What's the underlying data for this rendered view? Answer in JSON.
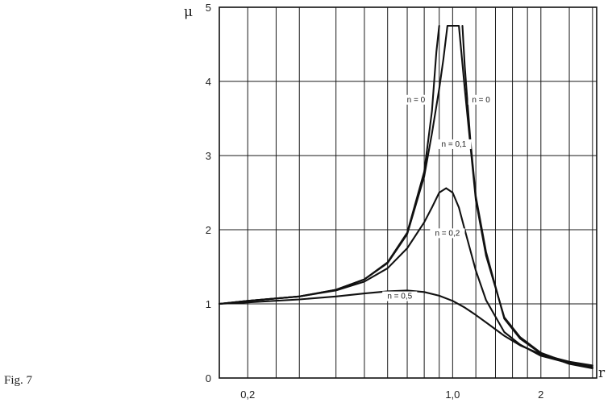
{
  "figure": {
    "caption": "Fig. 7"
  },
  "chart_data": {
    "type": "line",
    "title": "",
    "xlabel": "r",
    "ylabel": "μ",
    "xlim": [
      0.16,
      3.1
    ],
    "ylim": [
      0,
      5
    ],
    "x_scale": "log",
    "grid": true,
    "x_ticks": [
      {
        "value": 0.2,
        "label": "0,2"
      },
      {
        "value": 1.0,
        "label": "1,0"
      },
      {
        "value": 2.0,
        "label": "2"
      }
    ],
    "y_ticks": [
      {
        "value": 0,
        "label": "0"
      },
      {
        "value": 1,
        "label": "1"
      },
      {
        "value": 2,
        "label": "2"
      },
      {
        "value": 3,
        "label": "3"
      },
      {
        "value": 4,
        "label": "4"
      },
      {
        "value": 5,
        "label": "5"
      }
    ],
    "x_gridlines": [
      0.2,
      0.25,
      0.3,
      0.4,
      0.5,
      0.6,
      0.7,
      0.8,
      0.9,
      1.0,
      1.2,
      1.4,
      1.6,
      1.8,
      2.0,
      2.5,
      3.0
    ],
    "series": [
      {
        "name": "n = 0",
        "x": [
          0.16,
          0.2,
          0.3,
          0.4,
          0.5,
          0.6,
          0.7,
          0.8,
          0.85,
          0.88,
          0.9
        ],
        "y": [
          1.0,
          1.04,
          1.1,
          1.19,
          1.33,
          1.56,
          1.96,
          2.78,
          3.6,
          4.4,
          4.75
        ]
      },
      {
        "name": "n = 0",
        "x": [
          1.08,
          1.1,
          1.15,
          1.2,
          1.3,
          1.5,
          1.7,
          2.0,
          2.5,
          3.0
        ],
        "y": [
          4.75,
          4.2,
          3.2,
          2.45,
          1.7,
          0.8,
          0.53,
          0.33,
          0.19,
          0.13
        ]
      },
      {
        "name": "n = 0,1",
        "x": [
          0.16,
          0.2,
          0.3,
          0.4,
          0.5,
          0.6,
          0.7,
          0.8,
          0.85,
          0.9,
          0.93,
          0.96,
          1.0,
          1.05,
          1.1,
          1.2,
          1.3,
          1.5,
          1.7,
          2.0,
          2.5,
          3.0
        ],
        "y": [
          1.0,
          1.04,
          1.1,
          1.19,
          1.33,
          1.55,
          1.94,
          2.72,
          3.3,
          3.9,
          4.3,
          4.75,
          4.75,
          4.75,
          3.9,
          2.4,
          1.65,
          0.82,
          0.55,
          0.34,
          0.2,
          0.14
        ]
      },
      {
        "name": "n = 0,2",
        "x": [
          0.16,
          0.2,
          0.3,
          0.4,
          0.5,
          0.6,
          0.7,
          0.8,
          0.85,
          0.9,
          0.95,
          1.0,
          1.05,
          1.1,
          1.2,
          1.3,
          1.5,
          1.7,
          2.0,
          2.5,
          3.0
        ],
        "y": [
          1.0,
          1.04,
          1.1,
          1.18,
          1.3,
          1.48,
          1.75,
          2.1,
          2.3,
          2.5,
          2.56,
          2.5,
          2.3,
          2.0,
          1.45,
          1.05,
          0.62,
          0.45,
          0.3,
          0.2,
          0.15
        ]
      },
      {
        "name": "n = 0,5",
        "x": [
          0.16,
          0.2,
          0.3,
          0.4,
          0.5,
          0.6,
          0.7,
          0.8,
          0.9,
          1.0,
          1.1,
          1.2,
          1.3,
          1.5,
          1.7,
          2.0,
          2.5,
          3.0
        ],
        "y": [
          1.0,
          1.02,
          1.06,
          1.1,
          1.14,
          1.17,
          1.18,
          1.16,
          1.11,
          1.04,
          0.95,
          0.85,
          0.75,
          0.57,
          0.44,
          0.32,
          0.22,
          0.17
        ]
      }
    ],
    "annotations": [
      {
        "text": "n = 0",
        "x": 0.75,
        "y": 3.72
      },
      {
        "text": "n = 0",
        "x": 1.25,
        "y": 3.72
      },
      {
        "text": "n = 0,1",
        "x": 1.01,
        "y": 3.12
      },
      {
        "text": "n = 0,2",
        "x": 0.96,
        "y": 1.92
      },
      {
        "text": "n = 0,5",
        "x": 0.66,
        "y": 1.07
      }
    ]
  }
}
